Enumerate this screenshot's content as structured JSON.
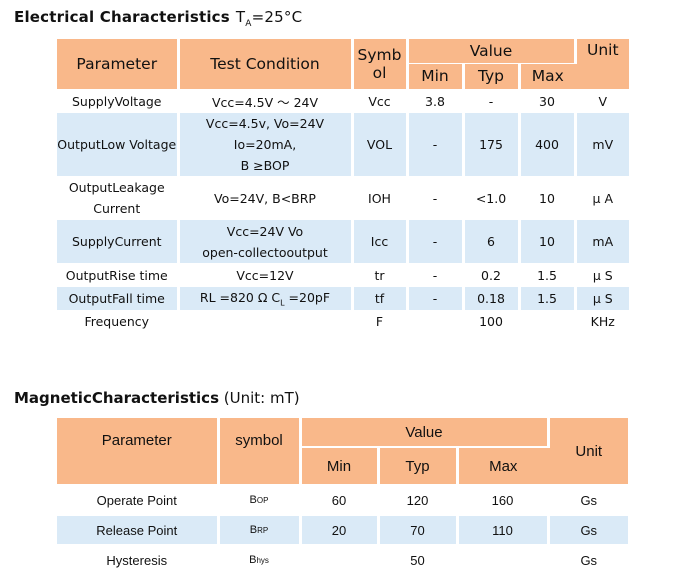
{
  "electrical": {
    "title": "Electrical  Characteristics",
    "condition_main": "T",
    "condition_sub": "A",
    "condition_rest": "=25°C",
    "headers": {
      "parameter": "Parameter",
      "test_condition": "Test Condition",
      "symbol_1": "Symb",
      "symbol_2": "ol",
      "value": "Value",
      "unit": "Unit",
      "min": "Min",
      "typ": "Typ",
      "max": "Max"
    },
    "rows": [
      {
        "parameter": "SupplyVoltage",
        "condition": [
          "Vcc=4.5V ～ 24V"
        ],
        "symbol": "Vcc",
        "min": "3.8",
        "typ": "-",
        "max": "30",
        "unit": "V"
      },
      {
        "parameter": "OutputLow Voltage",
        "condition": [
          "Vcc=4.5v, Vo=24V",
          "Io=20mA,",
          "B ≥BOP"
        ],
        "symbol": "VOL",
        "min": "-",
        "typ": "175",
        "max": "400",
        "unit": "mV"
      },
      {
        "parameter": [
          "OutputLeakage",
          "Current"
        ],
        "condition": [
          "Vo=24V, B<BRP"
        ],
        "symbol": "IOH",
        "min": "-",
        "typ": "<1.0",
        "max": "10",
        "unit": "μ A"
      },
      {
        "parameter": "SupplyCurrent",
        "condition": [
          "Vcc=24V Vo",
          "open-collectooutput"
        ],
        "symbol": "Icc",
        "min": "-",
        "typ": "6",
        "max": "10",
        "unit": "mA"
      },
      {
        "parameter": "OutputRise time",
        "condition": [
          "Vcc=12V"
        ],
        "symbol": "tr",
        "min": "-",
        "typ": "0.2",
        "max": "1.5",
        "unit": "μ S"
      },
      {
        "parameter": "OutputFall time",
        "condition": [
          "RL =820 Ω C",
          "L",
          " =20pF"
        ],
        "symbol": "tf",
        "min": "-",
        "typ": "0.18",
        "max": "1.5",
        "unit": "μ S"
      },
      {
        "parameter": "Frequency",
        "condition": [
          ""
        ],
        "symbol": "F",
        "min": "",
        "typ": "100",
        "max": "",
        "unit": "KHz"
      }
    ]
  },
  "magnetic": {
    "title_bold": "MagneticCharacteristics",
    "title_rest": " (Unit: mT)",
    "headers": {
      "parameter": "Parameter",
      "symbol": "symbol",
      "value": "Value",
      "unit": "Unit",
      "min": "Min",
      "typ": "Typ",
      "max": "Max"
    },
    "rows": [
      {
        "parameter": "Operate Point",
        "symbol_main": "B",
        "symbol_sub": "OP",
        "min": "60",
        "typ": "120",
        "max": "160",
        "unit": "Gs"
      },
      {
        "parameter": "Release Point",
        "symbol_main": "B",
        "symbol_sub": "RP",
        "min": "20",
        "typ": "70",
        "max": "110",
        "unit": "Gs"
      },
      {
        "parameter": "Hysteresis",
        "symbol_main": "B",
        "symbol_sub": "hys",
        "min": "",
        "typ": "50",
        "max": "",
        "unit": "Gs"
      }
    ]
  },
  "colors": {
    "header_orange": "#f9b88a",
    "row_blue": "#daeaf7",
    "row_white": "#ffffff"
  }
}
